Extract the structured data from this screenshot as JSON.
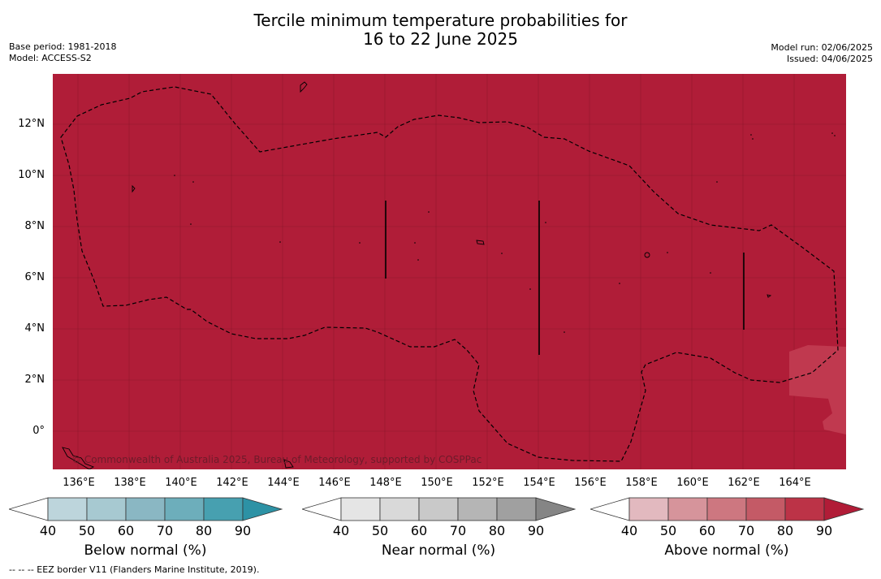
{
  "title_line1": "Tercile minimum temperature probabilities for",
  "title_line2": "16 to 22 June 2025",
  "base_period": "Base period: 1981-2018",
  "model": "Model: ACCESS-S2",
  "model_run": "Model run: 02/06/2025",
  "issued": "Issued: 04/06/2025",
  "credit": "© Commonwealth of Australia 2025, Bureau of Meteorology, supported by COSPPac",
  "lat_labels": [
    "12°N",
    "10°N",
    "8°N",
    "6°N",
    "4°N",
    "2°N",
    "0°"
  ],
  "lon_labels": [
    "136°E",
    "138°E",
    "140°E",
    "142°E",
    "144°E",
    "146°E",
    "148°E",
    "150°E",
    "152°E",
    "154°E",
    "156°E",
    "158°E",
    "160°E",
    "162°E",
    "164°E"
  ],
  "legends": [
    {
      "title": "Below normal (%)",
      "ticks": [
        "40",
        "50",
        "60",
        "70",
        "80",
        "90"
      ],
      "colors": [
        "#bdd5dc",
        "#a7c9d1",
        "#8ab7c3",
        "#6daebb",
        "#47a0b0",
        "#2d92a5"
      ]
    },
    {
      "title": "Near normal (%)",
      "ticks": [
        "40",
        "50",
        "60",
        "70",
        "80",
        "90"
      ],
      "colors": [
        "#e5e5e5",
        "#d9d9d9",
        "#c9c9c9",
        "#b5b5b5",
        "#a0a0a0",
        "#858585"
      ]
    },
    {
      "title": "Above normal (%)",
      "ticks": [
        "40",
        "50",
        "60",
        "70",
        "80",
        "90"
      ],
      "colors": [
        "#e2b9bf",
        "#d6949b",
        "#cd7780",
        "#c45a66",
        "#bc3347",
        "#b11c37"
      ]
    }
  ],
  "map_colors": {
    "above_normal_fill": "#b01d38",
    "patch_fill": "#c0394f"
  },
  "footnote": "--  --  -- EEZ border V11 (Flanders Marine Institute, 2019)."
}
